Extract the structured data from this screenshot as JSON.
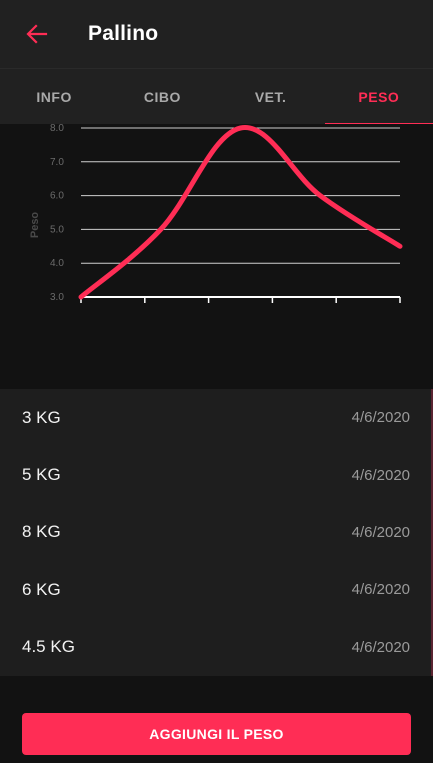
{
  "appbar": {
    "title": "Pallino",
    "back_icon": "arrow-left-icon"
  },
  "tabs": [
    {
      "label": "INFO",
      "active": false
    },
    {
      "label": "CIBO",
      "active": false
    },
    {
      "label": "VET.",
      "active": false
    },
    {
      "label": "PESO",
      "active": true
    }
  ],
  "colors": {
    "accent": "#ff2d55",
    "background": "#121212",
    "surface": "#212121",
    "list_bg": "#1e1e1e"
  },
  "chart_data": {
    "type": "line",
    "ylabel": "Peso",
    "yticks": [
      "3.0",
      "4.0",
      "5.0",
      "6.0",
      "7.0",
      "8.0"
    ],
    "ylim": [
      3,
      8
    ],
    "series": [
      {
        "values": [
          3,
          5,
          8,
          6,
          4.5
        ]
      }
    ],
    "color": "#ff2d55",
    "grid": true
  },
  "weights": [
    {
      "weight": "3 KG",
      "date": "4/6/2020"
    },
    {
      "weight": "5 KG",
      "date": "4/6/2020"
    },
    {
      "weight": "8 KG",
      "date": "4/6/2020"
    },
    {
      "weight": "6 KG",
      "date": "4/6/2020"
    },
    {
      "weight": "4.5 KG",
      "date": "4/6/2020"
    }
  ],
  "add_button": {
    "label": "AGGIUNGI IL PESO"
  }
}
